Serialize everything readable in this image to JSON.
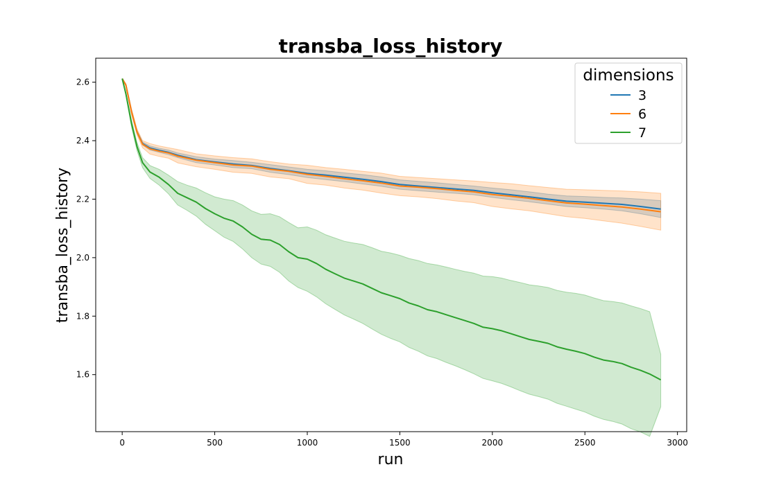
{
  "chart_data": {
    "type": "line",
    "title": "transba_loss_history",
    "xlabel": "run",
    "ylabel": "transba_loss_history",
    "xlim": [
      -143,
      3050
    ],
    "ylim": [
      1.405,
      2.682
    ],
    "xticks": [
      0,
      500,
      1000,
      1500,
      2000,
      2500,
      3000
    ],
    "yticks": [
      1.6,
      1.8,
      2.0,
      2.2,
      2.4,
      2.6
    ],
    "grid": false,
    "legend": {
      "title": "dimensions",
      "placement": "top-right"
    },
    "series": [
      {
        "name": "3",
        "color": "#1f77b4",
        "x": [
          0,
          20,
          50,
          80,
          110,
          150,
          200,
          250,
          300,
          400,
          500,
          600,
          700,
          800,
          900,
          1000,
          1100,
          1200,
          1300,
          1400,
          1500,
          1600,
          1700,
          1800,
          1900,
          2000,
          2100,
          2200,
          2300,
          2400,
          2500,
          2600,
          2700,
          2800,
          2910
        ],
        "y": [
          2.612,
          2.59,
          2.5,
          2.43,
          2.39,
          2.375,
          2.367,
          2.36,
          2.35,
          2.335,
          2.327,
          2.32,
          2.315,
          2.305,
          2.297,
          2.288,
          2.282,
          2.275,
          2.268,
          2.26,
          2.25,
          2.245,
          2.24,
          2.235,
          2.23,
          2.222,
          2.215,
          2.208,
          2.2,
          2.193,
          2.19,
          2.186,
          2.182,
          2.175,
          2.166
        ],
        "band_upper": [
          2.612,
          2.592,
          2.505,
          2.435,
          2.395,
          2.382,
          2.374,
          2.368,
          2.358,
          2.345,
          2.337,
          2.332,
          2.326,
          2.318,
          2.31,
          2.302,
          2.297,
          2.29,
          2.284,
          2.276,
          2.266,
          2.261,
          2.256,
          2.25,
          2.245,
          2.238,
          2.232,
          2.225,
          2.217,
          2.211,
          2.209,
          2.206,
          2.204,
          2.2,
          2.195
        ],
        "band_lower": [
          2.612,
          2.588,
          2.495,
          2.425,
          2.385,
          2.368,
          2.36,
          2.352,
          2.342,
          2.325,
          2.317,
          2.308,
          2.304,
          2.292,
          2.284,
          2.274,
          2.267,
          2.26,
          2.252,
          2.244,
          2.234,
          2.229,
          2.224,
          2.22,
          2.215,
          2.206,
          2.198,
          2.191,
          2.183,
          2.175,
          2.171,
          2.166,
          2.16,
          2.15,
          2.137
        ]
      },
      {
        "name": "6",
        "color": "#ff7f0e",
        "x": [
          0,
          20,
          50,
          80,
          110,
          150,
          200,
          250,
          300,
          400,
          500,
          600,
          700,
          800,
          900,
          1000,
          1100,
          1200,
          1300,
          1400,
          1500,
          1600,
          1700,
          1800,
          1900,
          2000,
          2100,
          2200,
          2300,
          2400,
          2500,
          2600,
          2700,
          2800,
          2910
        ],
        "y": [
          2.612,
          2.59,
          2.5,
          2.43,
          2.388,
          2.372,
          2.364,
          2.358,
          2.347,
          2.333,
          2.325,
          2.317,
          2.313,
          2.302,
          2.295,
          2.285,
          2.278,
          2.27,
          2.263,
          2.255,
          2.245,
          2.241,
          2.236,
          2.23,
          2.225,
          2.216,
          2.21,
          2.203,
          2.195,
          2.187,
          2.183,
          2.178,
          2.173,
          2.166,
          2.157
        ],
        "band_upper": [
          2.612,
          2.595,
          2.51,
          2.44,
          2.4,
          2.39,
          2.382,
          2.376,
          2.37,
          2.355,
          2.348,
          2.342,
          2.338,
          2.328,
          2.32,
          2.316,
          2.308,
          2.302,
          2.295,
          2.289,
          2.278,
          2.274,
          2.27,
          2.266,
          2.262,
          2.257,
          2.253,
          2.246,
          2.24,
          2.234,
          2.232,
          2.23,
          2.228,
          2.225,
          2.22
        ],
        "band_lower": [
          2.612,
          2.585,
          2.49,
          2.42,
          2.376,
          2.354,
          2.346,
          2.34,
          2.324,
          2.311,
          2.302,
          2.292,
          2.288,
          2.276,
          2.27,
          2.254,
          2.248,
          2.238,
          2.231,
          2.221,
          2.212,
          2.208,
          2.202,
          2.194,
          2.188,
          2.175,
          2.167,
          2.16,
          2.15,
          2.14,
          2.134,
          2.126,
          2.118,
          2.107,
          2.094
        ]
      },
      {
        "name": "7",
        "color": "#2ca02c",
        "x": [
          0,
          20,
          50,
          80,
          110,
          150,
          200,
          250,
          300,
          350,
          400,
          450,
          500,
          550,
          600,
          650,
          700,
          750,
          800,
          850,
          900,
          950,
          1000,
          1050,
          1100,
          1150,
          1200,
          1250,
          1300,
          1350,
          1400,
          1450,
          1500,
          1550,
          1600,
          1650,
          1700,
          1750,
          1800,
          1850,
          1900,
          1950,
          2000,
          2050,
          2100,
          2150,
          2200,
          2250,
          2300,
          2350,
          2400,
          2450,
          2500,
          2550,
          2600,
          2650,
          2700,
          2750,
          2800,
          2850,
          2910
        ],
        "y": [
          2.612,
          2.56,
          2.46,
          2.38,
          2.325,
          2.293,
          2.275,
          2.25,
          2.22,
          2.205,
          2.19,
          2.168,
          2.15,
          2.135,
          2.125,
          2.105,
          2.08,
          2.063,
          2.06,
          2.045,
          2.02,
          2.0,
          1.995,
          1.98,
          1.96,
          1.945,
          1.93,
          1.92,
          1.91,
          1.895,
          1.88,
          1.87,
          1.86,
          1.845,
          1.835,
          1.822,
          1.815,
          1.805,
          1.795,
          1.785,
          1.775,
          1.762,
          1.757,
          1.75,
          1.74,
          1.73,
          1.72,
          1.714,
          1.707,
          1.695,
          1.687,
          1.68,
          1.672,
          1.66,
          1.65,
          1.645,
          1.638,
          1.625,
          1.615,
          1.602,
          1.582
        ],
        "band_upper": [
          2.612,
          2.565,
          2.472,
          2.394,
          2.342,
          2.315,
          2.302,
          2.282,
          2.26,
          2.248,
          2.238,
          2.222,
          2.208,
          2.2,
          2.195,
          2.18,
          2.16,
          2.148,
          2.15,
          2.14,
          2.12,
          2.102,
          2.105,
          2.094,
          2.078,
          2.067,
          2.056,
          2.05,
          2.045,
          2.034,
          2.022,
          2.016,
          2.008,
          1.997,
          1.99,
          1.98,
          1.975,
          1.968,
          1.96,
          1.953,
          1.947,
          1.937,
          1.935,
          1.93,
          1.922,
          1.915,
          1.907,
          1.903,
          1.898,
          1.888,
          1.882,
          1.878,
          1.872,
          1.862,
          1.853,
          1.85,
          1.845,
          1.835,
          1.826,
          1.815,
          1.67
        ],
        "band_lower": [
          2.612,
          2.555,
          2.448,
          2.366,
          2.308,
          2.271,
          2.248,
          2.218,
          2.18,
          2.162,
          2.142,
          2.114,
          2.092,
          2.07,
          2.055,
          2.03,
          2.0,
          1.978,
          1.97,
          1.95,
          1.92,
          1.898,
          1.885,
          1.866,
          1.842,
          1.823,
          1.804,
          1.79,
          1.775,
          1.756,
          1.738,
          1.724,
          1.712,
          1.693,
          1.68,
          1.664,
          1.655,
          1.642,
          1.63,
          1.617,
          1.603,
          1.587,
          1.579,
          1.57,
          1.558,
          1.545,
          1.533,
          1.525,
          1.516,
          1.502,
          1.492,
          1.482,
          1.472,
          1.458,
          1.447,
          1.44,
          1.431,
          1.415,
          1.404,
          1.389,
          1.49
        ]
      }
    ]
  }
}
